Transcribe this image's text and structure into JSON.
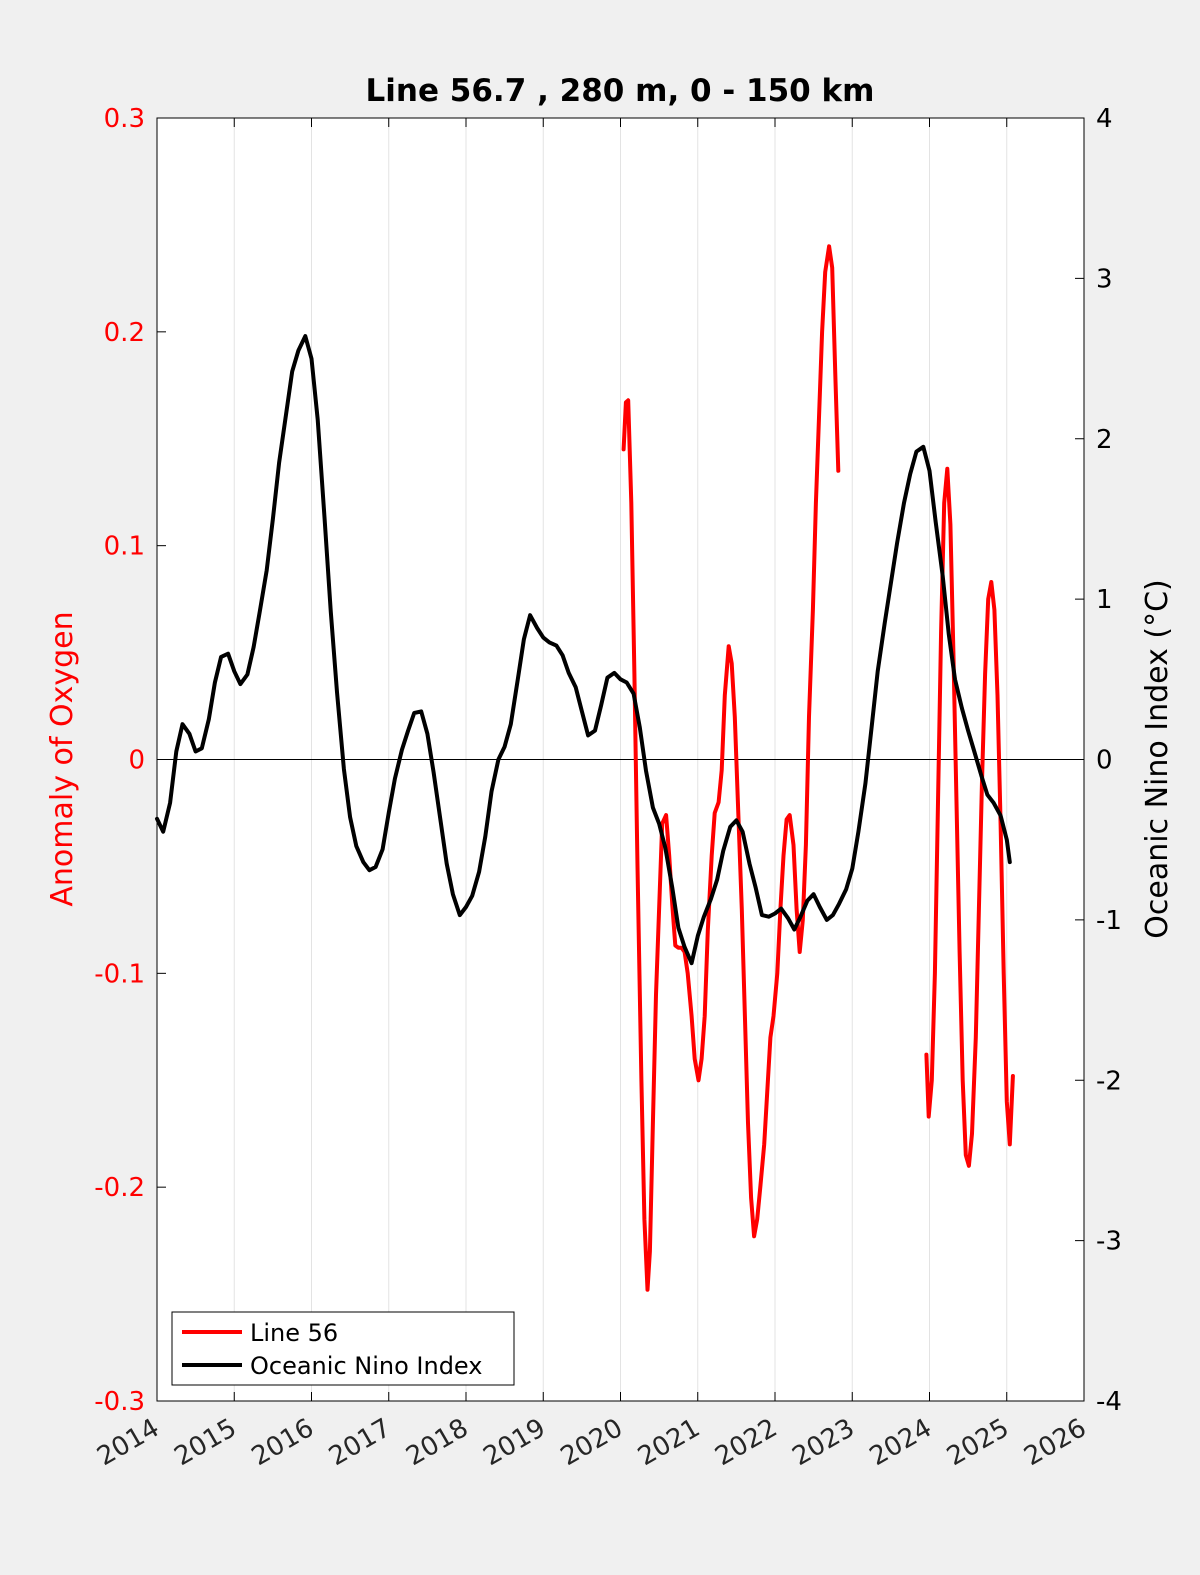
{
  "chart_data": {
    "type": "line",
    "title": "Line 56.7 , 280 m, 0 - 150 km",
    "xlabel": "",
    "ylabel": "Anomaly of Oxygen",
    "y2label": "Oceanic Nino Index (°C)",
    "xlim": [
      2014,
      2026
    ],
    "ylim": [
      -0.3,
      0.3
    ],
    "y2lim": [
      -4,
      4
    ],
    "x_ticks": [
      "2014",
      "2015",
      "2016",
      "2017",
      "2018",
      "2019",
      "2020",
      "2021",
      "2022",
      "2023",
      "2024",
      "2025",
      "2026"
    ],
    "y_ticks": [
      "-0.3",
      "-0.2",
      "-0.1",
      "0",
      "0.1",
      "0.2",
      "0.3"
    ],
    "y2_ticks": [
      "-4",
      "-3",
      "-2",
      "-1",
      "0",
      "1",
      "2",
      "3",
      "4"
    ],
    "grid": "vertical",
    "zero_line": true,
    "legend": {
      "position": "bottom-left",
      "entries": [
        "Line 56",
        "Oceanic Nino Index"
      ]
    },
    "colors": {
      "line56": "#ff0000",
      "oni": "#000000",
      "left_axis": "#ff0000",
      "right_axis": "#000000"
    },
    "series": [
      {
        "name": "Line 56",
        "axis": "left",
        "color": "#ff0000",
        "segments": [
          [
            [
              2020.04,
              0.145
            ],
            [
              2020.07,
              0.167
            ],
            [
              2020.1,
              0.168
            ],
            [
              2020.14,
              0.12
            ],
            [
              2020.18,
              0.04
            ],
            [
              2020.22,
              -0.05
            ],
            [
              2020.27,
              -0.15
            ],
            [
              2020.31,
              -0.215
            ],
            [
              2020.35,
              -0.248
            ],
            [
              2020.38,
              -0.23
            ],
            [
              2020.42,
              -0.17
            ],
            [
              2020.46,
              -0.11
            ],
            [
              2020.5,
              -0.07
            ],
            [
              2020.54,
              -0.03
            ],
            [
              2020.59,
              -0.026
            ],
            [
              2020.63,
              -0.045
            ],
            [
              2020.67,
              -0.068
            ],
            [
              2020.71,
              -0.087
            ],
            [
              2020.75,
              -0.088
            ],
            [
              2020.79,
              -0.088
            ],
            [
              2020.83,
              -0.09
            ],
            [
              2020.87,
              -0.1
            ],
            [
              2020.92,
              -0.12
            ],
            [
              2020.96,
              -0.14
            ],
            [
              2021.01,
              -0.15
            ],
            [
              2021.05,
              -0.14
            ],
            [
              2021.09,
              -0.12
            ],
            [
              2021.13,
              -0.08
            ],
            [
              2021.18,
              -0.045
            ],
            [
              2021.22,
              -0.025
            ],
            [
              2021.27,
              -0.02
            ],
            [
              2021.31,
              -0.005
            ],
            [
              2021.35,
              0.03
            ],
            [
              2021.4,
              0.053
            ],
            [
              2021.44,
              0.045
            ],
            [
              2021.48,
              0.02
            ],
            [
              2021.52,
              -0.02
            ],
            [
              2021.57,
              -0.07
            ],
            [
              2021.61,
              -0.12
            ],
            [
              2021.65,
              -0.17
            ],
            [
              2021.69,
              -0.205
            ],
            [
              2021.73,
              -0.223
            ],
            [
              2021.77,
              -0.215
            ],
            [
              2021.81,
              -0.2
            ],
            [
              2021.86,
              -0.18
            ],
            [
              2021.9,
              -0.155
            ],
            [
              2021.94,
              -0.13
            ],
            [
              2021.98,
              -0.12
            ],
            [
              2022.03,
              -0.1
            ],
            [
              2022.07,
              -0.07
            ],
            [
              2022.11,
              -0.045
            ],
            [
              2022.15,
              -0.028
            ],
            [
              2022.19,
              -0.026
            ],
            [
              2022.24,
              -0.04
            ],
            [
              2022.28,
              -0.07
            ],
            [
              2022.32,
              -0.09
            ],
            [
              2022.36,
              -0.075
            ],
            [
              2022.4,
              -0.04
            ],
            [
              2022.44,
              0.02
            ],
            [
              2022.49,
              0.07
            ],
            [
              2022.53,
              0.12
            ],
            [
              2022.57,
              0.16
            ],
            [
              2022.61,
              0.2
            ],
            [
              2022.65,
              0.228
            ],
            [
              2022.7,
              0.24
            ],
            [
              2022.74,
              0.23
            ],
            [
              2022.78,
              0.18
            ],
            [
              2022.82,
              0.135
            ]
          ],
          [
            [
              2023.96,
              -0.138
            ],
            [
              2023.99,
              -0.167
            ],
            [
              2024.03,
              -0.15
            ],
            [
              2024.07,
              -0.1
            ],
            [
              2024.11,
              -0.02
            ],
            [
              2024.15,
              0.06
            ],
            [
              2024.19,
              0.12
            ],
            [
              2024.23,
              0.136
            ],
            [
              2024.27,
              0.11
            ],
            [
              2024.31,
              0.05
            ],
            [
              2024.35,
              -0.02
            ],
            [
              2024.39,
              -0.09
            ],
            [
              2024.43,
              -0.15
            ],
            [
              2024.47,
              -0.185
            ],
            [
              2024.51,
              -0.19
            ],
            [
              2024.55,
              -0.175
            ],
            [
              2024.6,
              -0.13
            ],
            [
              2024.64,
              -0.07
            ],
            [
              2024.68,
              -0.01
            ],
            [
              2024.72,
              0.04
            ],
            [
              2024.76,
              0.075
            ],
            [
              2024.8,
              0.083
            ],
            [
              2024.84,
              0.07
            ],
            [
              2024.88,
              0.03
            ],
            [
              2024.92,
              -0.03
            ],
            [
              2024.96,
              -0.1
            ],
            [
              2025.0,
              -0.16
            ],
            [
              2025.04,
              -0.18
            ],
            [
              2025.08,
              -0.148
            ]
          ]
        ]
      },
      {
        "name": "Oceanic Nino Index",
        "axis": "right",
        "color": "#000000",
        "points": [
          [
            2014.0,
            -0.37
          ],
          [
            2014.08,
            -0.45
          ],
          [
            2014.17,
            -0.27
          ],
          [
            2014.25,
            0.05
          ],
          [
            2014.33,
            0.22
          ],
          [
            2014.42,
            0.16
          ],
          [
            2014.5,
            0.05
          ],
          [
            2014.58,
            0.07
          ],
          [
            2014.67,
            0.25
          ],
          [
            2014.75,
            0.48
          ],
          [
            2014.83,
            0.64
          ],
          [
            2014.92,
            0.66
          ],
          [
            2015.0,
            0.55
          ],
          [
            2015.08,
            0.47
          ],
          [
            2015.17,
            0.53
          ],
          [
            2015.25,
            0.7
          ],
          [
            2015.33,
            0.92
          ],
          [
            2015.42,
            1.18
          ],
          [
            2015.5,
            1.5
          ],
          [
            2015.58,
            1.85
          ],
          [
            2015.67,
            2.15
          ],
          [
            2015.75,
            2.42
          ],
          [
            2015.83,
            2.55
          ],
          [
            2015.92,
            2.64
          ],
          [
            2016.0,
            2.5
          ],
          [
            2016.08,
            2.12
          ],
          [
            2016.17,
            1.5
          ],
          [
            2016.25,
            0.92
          ],
          [
            2016.33,
            0.42
          ],
          [
            2016.42,
            -0.06
          ],
          [
            2016.5,
            -0.36
          ],
          [
            2016.58,
            -0.54
          ],
          [
            2016.67,
            -0.64
          ],
          [
            2016.75,
            -0.69
          ],
          [
            2016.83,
            -0.67
          ],
          [
            2016.92,
            -0.56
          ],
          [
            2017.0,
            -0.33
          ],
          [
            2017.08,
            -0.12
          ],
          [
            2017.17,
            0.06
          ],
          [
            2017.25,
            0.18
          ],
          [
            2017.33,
            0.29
          ],
          [
            2017.42,
            0.3
          ],
          [
            2017.5,
            0.16
          ],
          [
            2017.58,
            -0.08
          ],
          [
            2017.67,
            -0.38
          ],
          [
            2017.75,
            -0.65
          ],
          [
            2017.83,
            -0.84
          ],
          [
            2017.92,
            -0.97
          ],
          [
            2018.0,
            -0.92
          ],
          [
            2018.08,
            -0.85
          ],
          [
            2018.17,
            -0.7
          ],
          [
            2018.25,
            -0.48
          ],
          [
            2018.33,
            -0.2
          ],
          [
            2018.42,
            0.0
          ],
          [
            2018.5,
            0.08
          ],
          [
            2018.58,
            0.22
          ],
          [
            2018.67,
            0.5
          ],
          [
            2018.75,
            0.75
          ],
          [
            2018.83,
            0.9
          ],
          [
            2018.92,
            0.82
          ],
          [
            2019.0,
            0.76
          ],
          [
            2019.08,
            0.73
          ],
          [
            2019.17,
            0.71
          ],
          [
            2019.25,
            0.65
          ],
          [
            2019.33,
            0.54
          ],
          [
            2019.42,
            0.45
          ],
          [
            2019.5,
            0.3
          ],
          [
            2019.58,
            0.15
          ],
          [
            2019.67,
            0.18
          ],
          [
            2019.75,
            0.34
          ],
          [
            2019.83,
            0.51
          ],
          [
            2019.92,
            0.54
          ],
          [
            2020.0,
            0.5
          ],
          [
            2020.08,
            0.48
          ],
          [
            2020.17,
            0.41
          ],
          [
            2020.25,
            0.2
          ],
          [
            2020.33,
            -0.07
          ],
          [
            2020.42,
            -0.3
          ],
          [
            2020.5,
            -0.4
          ],
          [
            2020.58,
            -0.55
          ],
          [
            2020.67,
            -0.8
          ],
          [
            2020.75,
            -1.05
          ],
          [
            2020.83,
            -1.17
          ],
          [
            2020.92,
            -1.27
          ],
          [
            2021.0,
            -1.1
          ],
          [
            2021.08,
            -0.98
          ],
          [
            2021.17,
            -0.87
          ],
          [
            2021.25,
            -0.75
          ],
          [
            2021.33,
            -0.57
          ],
          [
            2021.42,
            -0.42
          ],
          [
            2021.5,
            -0.38
          ],
          [
            2021.58,
            -0.45
          ],
          [
            2021.67,
            -0.65
          ],
          [
            2021.75,
            -0.8
          ],
          [
            2021.83,
            -0.97
          ],
          [
            2021.92,
            -0.98
          ],
          [
            2022.0,
            -0.96
          ],
          [
            2022.08,
            -0.93
          ],
          [
            2022.17,
            -0.99
          ],
          [
            2022.25,
            -1.06
          ],
          [
            2022.33,
            -0.98
          ],
          [
            2022.42,
            -0.88
          ],
          [
            2022.5,
            -0.84
          ],
          [
            2022.58,
            -0.92
          ],
          [
            2022.67,
            -1.0
          ],
          [
            2022.75,
            -0.97
          ],
          [
            2022.83,
            -0.9
          ],
          [
            2022.92,
            -0.81
          ],
          [
            2023.0,
            -0.68
          ],
          [
            2023.08,
            -0.45
          ],
          [
            2023.17,
            -0.15
          ],
          [
            2023.25,
            0.2
          ],
          [
            2023.33,
            0.55
          ],
          [
            2023.42,
            0.85
          ],
          [
            2023.5,
            1.1
          ],
          [
            2023.58,
            1.35
          ],
          [
            2023.67,
            1.6
          ],
          [
            2023.75,
            1.78
          ],
          [
            2023.83,
            1.92
          ],
          [
            2023.92,
            1.95
          ],
          [
            2024.0,
            1.8
          ],
          [
            2024.08,
            1.48
          ],
          [
            2024.17,
            1.15
          ],
          [
            2024.25,
            0.78
          ],
          [
            2024.33,
            0.5
          ],
          [
            2024.42,
            0.32
          ],
          [
            2024.5,
            0.18
          ],
          [
            2024.58,
            0.05
          ],
          [
            2024.67,
            -0.1
          ],
          [
            2024.75,
            -0.22
          ],
          [
            2024.83,
            -0.27
          ],
          [
            2024.92,
            -0.35
          ],
          [
            2025.0,
            -0.5
          ],
          [
            2025.04,
            -0.64
          ]
        ]
      }
    ]
  }
}
